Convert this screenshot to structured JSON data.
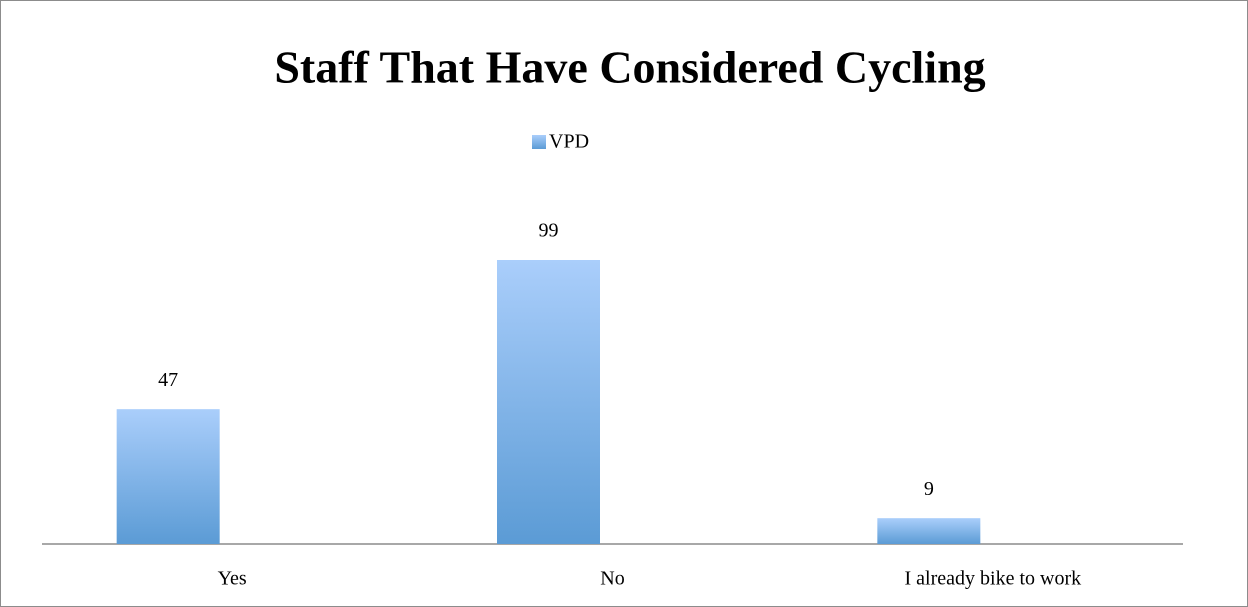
{
  "chart_data": {
    "type": "bar",
    "title": "Staff That Have Considered Cycling",
    "categories": [
      "Yes",
      "No",
      "I already bike to work"
    ],
    "series": [
      {
        "name": "VPD",
        "color": "#5b9bd5",
        "values": [
          47,
          99,
          9
        ]
      }
    ]
  }
}
